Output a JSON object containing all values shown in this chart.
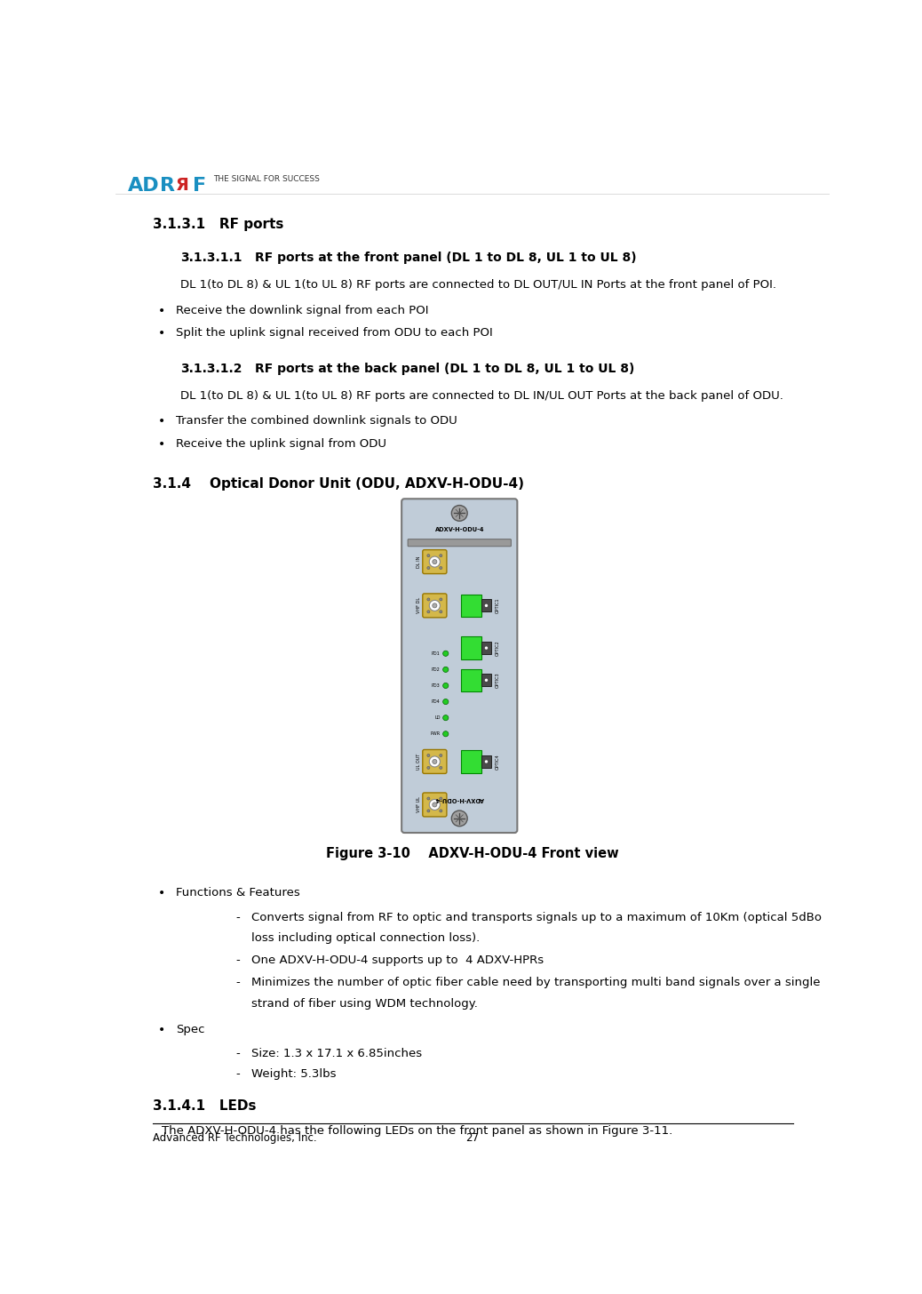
{
  "page_width": 10.38,
  "page_height": 14.56,
  "bg_color": "#ffffff",
  "footer_company": "Advanced RF Technologies, Inc.",
  "footer_page": "27",
  "section_311": "3.1.3.1   RF ports",
  "section_31111_title": "3.1.3.1.1",
  "section_31111_heading": "RF ports at the front panel (DL 1 to DL 8, UL 1 to UL 8)",
  "section_31111_body": "DL 1(to DL 8) & UL 1(to UL 8) RF ports are connected to DL OUT/UL IN Ports at the front panel of POI.",
  "bullet_31111_1": "Receive the downlink signal from each POI",
  "bullet_31111_2": "Split the uplink signal received from ODU to each POI",
  "section_31112_title": "3.1.3.1.2",
  "section_31112_heading": "RF ports at the back panel (DL 1 to DL 8, UL 1 to UL 8)",
  "section_31112_body": "DL 1(to DL 8) & UL 1(to UL 8) RF ports are connected to DL IN/UL OUT Ports at the back panel of ODU.",
  "bullet_31112_1": "Transfer the combined downlink signals to ODU",
  "bullet_31112_2": "Receive the uplink signal from ODU",
  "section_314": "3.1.4    Optical Donor Unit (ODU, ADXV-H-ODU-4)",
  "figure_caption": "Figure 3-10    ADXV-H-ODU-4 Front view",
  "bullet_func_header": "Functions & Features",
  "bullet_func_1a": "Converts signal from RF to optic and transports signals up to a maximum of 10Km (optical 5dBo",
  "bullet_func_1b": "loss including optical connection loss).",
  "bullet_func_2": "One ADXV-H-ODU-4 supports up to  4 ADXV-HPRs",
  "bullet_func_3a": "Minimizes the number of optic fiber cable need by transporting multi band signals over a single",
  "bullet_func_3b": "strand of fiber using WDM technology.",
  "bullet_spec_header": "Spec",
  "bullet_spec_1": "Size: 1.3 x 17.1 x 6.85inches",
  "bullet_spec_2": "Weight: 5.3lbs",
  "section_3141": "3.1.4.1   LEDs",
  "section_3141_body": "The ADXV-H-ODU-4 has the following LEDs on the front panel as shown in Figure 3-11.",
  "text_color": "#000000",
  "device_bg": "#c0ccd8",
  "device_border": "#888888",
  "connector_yellow": "#d4b84a",
  "optic_green": "#22dd22",
  "optic_dark": "#505050",
  "led_green": "#22cc22",
  "screw_gray": "#909090",
  "logo_ad_color": "#1a8fc1",
  "logo_r_color": "#1a8fc1",
  "logo_f_color": "#1a8fc1"
}
